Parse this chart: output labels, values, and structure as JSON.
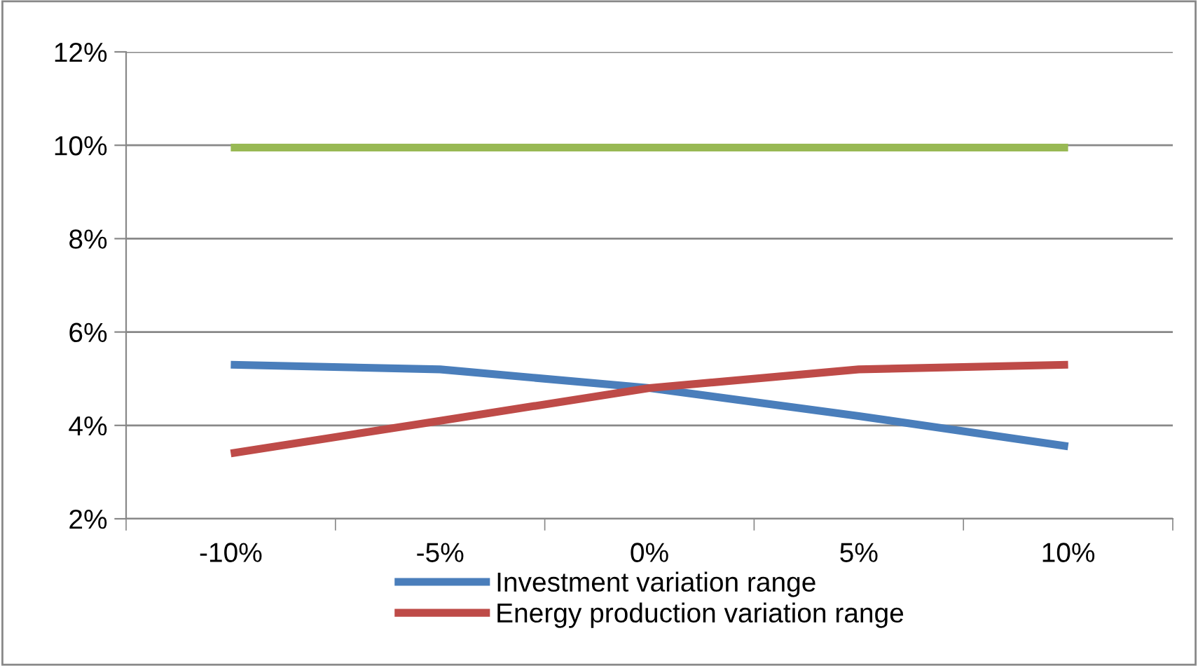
{
  "chart_data": {
    "type": "line",
    "categories": [
      "-10%",
      "-5%",
      "0%",
      "5%",
      "10%"
    ],
    "series": [
      {
        "name": "Investment variation range",
        "color": "#4a7ebb",
        "values": [
          5.3,
          5.2,
          4.8,
          4.2,
          3.55
        ]
      },
      {
        "name": "Energy production variation range",
        "color": "#be4b48",
        "values": [
          3.4,
          4.1,
          4.8,
          5.2,
          5.3
        ]
      },
      {
        "color": "#98b954",
        "values": [
          9.95,
          9.95,
          9.95,
          9.95,
          9.95
        ]
      }
    ],
    "ylim": [
      2,
      12
    ],
    "yticks": [
      {
        "value": 2,
        "label": "2%"
      },
      {
        "value": 4,
        "label": "4%"
      },
      {
        "value": 6,
        "label": "6%"
      },
      {
        "value": 8,
        "label": "8%"
      },
      {
        "value": 10,
        "label": "10%"
      },
      {
        "value": 12,
        "label": "12%"
      }
    ],
    "grid": "y",
    "legend": "bottom",
    "marker": "none",
    "line_style": "solid"
  }
}
